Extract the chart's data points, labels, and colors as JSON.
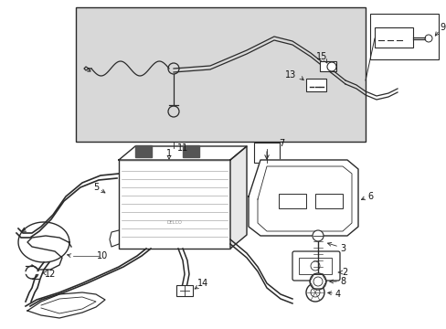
{
  "bg_color": "#ffffff",
  "inset_bg": "#dcdcdc",
  "line_color": "#2a2a2a",
  "text_color": "#111111",
  "fig_w": 4.89,
  "fig_h": 3.6,
  "dpi": 100
}
